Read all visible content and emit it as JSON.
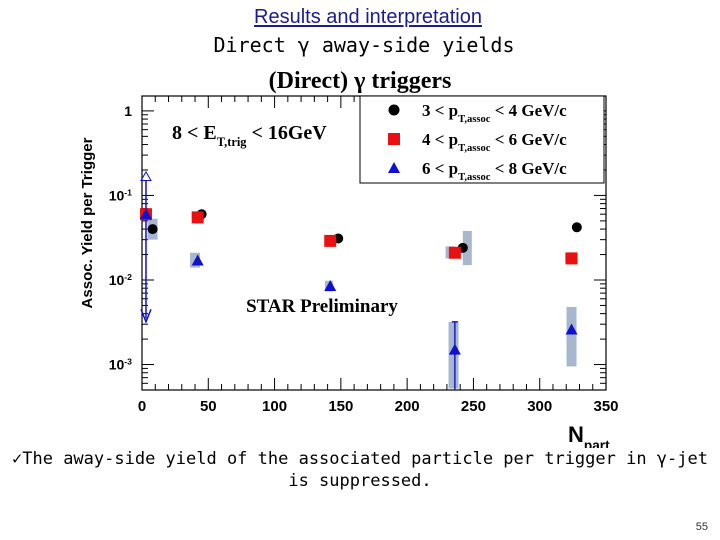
{
  "slide": {
    "title": "Results and interpretation",
    "subtitle": "Direct γ away-side yields",
    "bullet_mark": "✓",
    "bullet_text": "The away-side yield of the associated particle per trigger in γ-jet is suppressed.",
    "page_number": "55"
  },
  "chart_data": {
    "type": "scatter",
    "title": "(Direct) γ triggers",
    "ylabel": "Assoc. Yield per Trigger",
    "xlabel": "N",
    "xlabel_sub": "part",
    "cut_label": "8 < E",
    "cut_label_sub": "T,trig",
    "cut_label_rest": " < 16GeV",
    "preliminary": "STAR Preliminary",
    "xlim": [
      0,
      350
    ],
    "ylim": [
      0.0005,
      1.5
    ],
    "yscale": "log",
    "x_ticks": [
      "0",
      "50",
      "100",
      "150",
      "200",
      "250",
      "300",
      "350"
    ],
    "y_ticks": [
      {
        "base": "1",
        "exp": ""
      },
      {
        "base": "10",
        "exp": "-1"
      },
      {
        "base": "10",
        "exp": "-2"
      },
      {
        "base": "10",
        "exp": "-3"
      }
    ],
    "legend_position": "top-right",
    "series": [
      {
        "name": "3 < p",
        "name_sub": "T,assoc",
        "name_rest": " < 4 GeV/c",
        "marker": "circle",
        "color": "#000000",
        "x": [
          8,
          45,
          148,
          242,
          328
        ],
        "y": [
          0.04,
          0.06,
          0.031,
          0.024,
          0.042
        ]
      },
      {
        "name": "4 < p",
        "name_sub": "T,assoc",
        "name_rest": " < 6 GeV/c",
        "marker": "square",
        "color": "#e81010",
        "x": [
          3,
          42,
          142,
          236,
          324
        ],
        "y": [
          0.06,
          0.055,
          0.029,
          0.021,
          0.018
        ]
      },
      {
        "name": "6 < p",
        "name_sub": "T,assoc",
        "name_rest": " < 8 GeV/c",
        "marker": "triangle",
        "color": "#1010d0",
        "x": [
          3,
          42,
          142,
          236,
          324
        ],
        "y": [
          0.06,
          0.017,
          0.0085,
          0.0015,
          0.0026
        ]
      }
    ]
  }
}
